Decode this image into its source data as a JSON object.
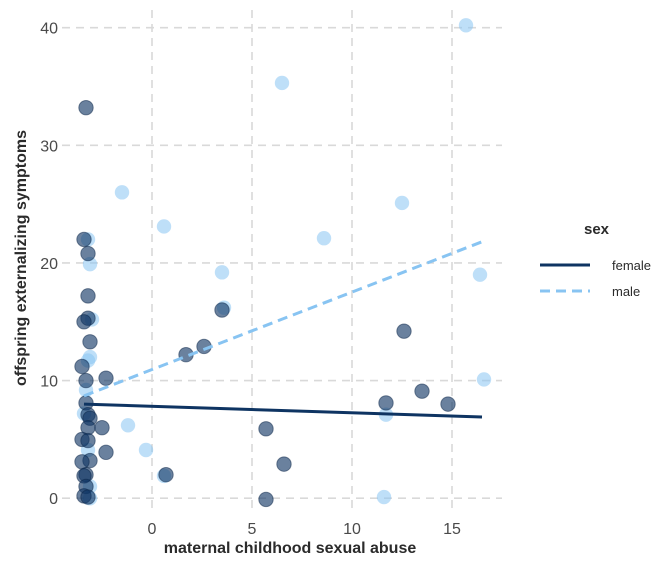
{
  "chart_data": {
    "type": "scatter",
    "title": "",
    "xlabel": "maternal childhood sexual abuse",
    "ylabel": "offspring externalizing symptoms",
    "xlim": [
      -4.5,
      17.5
    ],
    "ylim": [
      -1,
      41.5
    ],
    "x_ticks": [
      0,
      5,
      10,
      15
    ],
    "y_ticks": [
      0,
      10,
      20,
      30,
      40
    ],
    "grid": true,
    "legend": {
      "title": "sex",
      "position": "right"
    },
    "series": [
      {
        "name": "female",
        "color": "#0e3462",
        "line_style": "solid",
        "trend": {
          "x": [
            -3.4,
            16.5
          ],
          "y": [
            8.0,
            6.9
          ]
        },
        "points": [
          [
            -3.3,
            33.2
          ],
          [
            -3.4,
            22.0
          ],
          [
            -3.2,
            20.8
          ],
          [
            -3.2,
            17.2
          ],
          [
            -3.2,
            15.3
          ],
          [
            -3.4,
            15.0
          ],
          [
            -3.1,
            13.3
          ],
          [
            -3.5,
            11.2
          ],
          [
            -3.3,
            10.0
          ],
          [
            -3.3,
            8.1
          ],
          [
            -3.2,
            7.1
          ],
          [
            -3.1,
            6.8
          ],
          [
            -3.2,
            6.0
          ],
          [
            -3.5,
            5.0
          ],
          [
            -3.2,
            4.9
          ],
          [
            -3.1,
            3.2
          ],
          [
            -3.5,
            3.1
          ],
          [
            -3.3,
            2.0
          ],
          [
            -3.4,
            1.9
          ],
          [
            -3.3,
            1.0
          ],
          [
            -3.4,
            0.2
          ],
          [
            -3.2,
            0.1
          ],
          [
            -2.5,
            6.0
          ],
          [
            -2.3,
            3.9
          ],
          [
            -2.3,
            10.2
          ],
          [
            0.7,
            2.0
          ],
          [
            1.7,
            12.2
          ],
          [
            2.6,
            12.9
          ],
          [
            3.5,
            16.0
          ],
          [
            5.7,
            5.9
          ],
          [
            5.7,
            -0.1
          ],
          [
            6.6,
            2.9
          ],
          [
            11.7,
            8.1
          ],
          [
            12.6,
            14.2
          ],
          [
            13.5,
            9.1
          ],
          [
            14.8,
            8.0
          ]
        ]
      },
      {
        "name": "male",
        "color": "#88c4f2",
        "line_style": "dashed",
        "trend": {
          "x": [
            -3.4,
            16.5
          ],
          "y": [
            8.7,
            21.8
          ]
        },
        "points": [
          [
            -3.2,
            22.0
          ],
          [
            -3.1,
            19.9
          ],
          [
            -3.0,
            15.2
          ],
          [
            -3.1,
            12.0
          ],
          [
            -3.2,
            11.7
          ],
          [
            -3.3,
            9.2
          ],
          [
            -3.4,
            7.2
          ],
          [
            -3.2,
            4.1
          ],
          [
            -3.1,
            1.0
          ],
          [
            -3.1,
            0.0
          ],
          [
            -1.5,
            26.0
          ],
          [
            -1.2,
            6.2
          ],
          [
            -0.3,
            4.1
          ],
          [
            0.6,
            23.1
          ],
          [
            0.6,
            1.9
          ],
          [
            3.5,
            19.2
          ],
          [
            3.6,
            16.2
          ],
          [
            6.5,
            35.3
          ],
          [
            8.6,
            22.1
          ],
          [
            11.6,
            0.1
          ],
          [
            11.7,
            7.1
          ],
          [
            12.5,
            25.1
          ],
          [
            15.7,
            40.2
          ],
          [
            16.4,
            19.0
          ],
          [
            16.6,
            10.1
          ]
        ]
      }
    ]
  }
}
